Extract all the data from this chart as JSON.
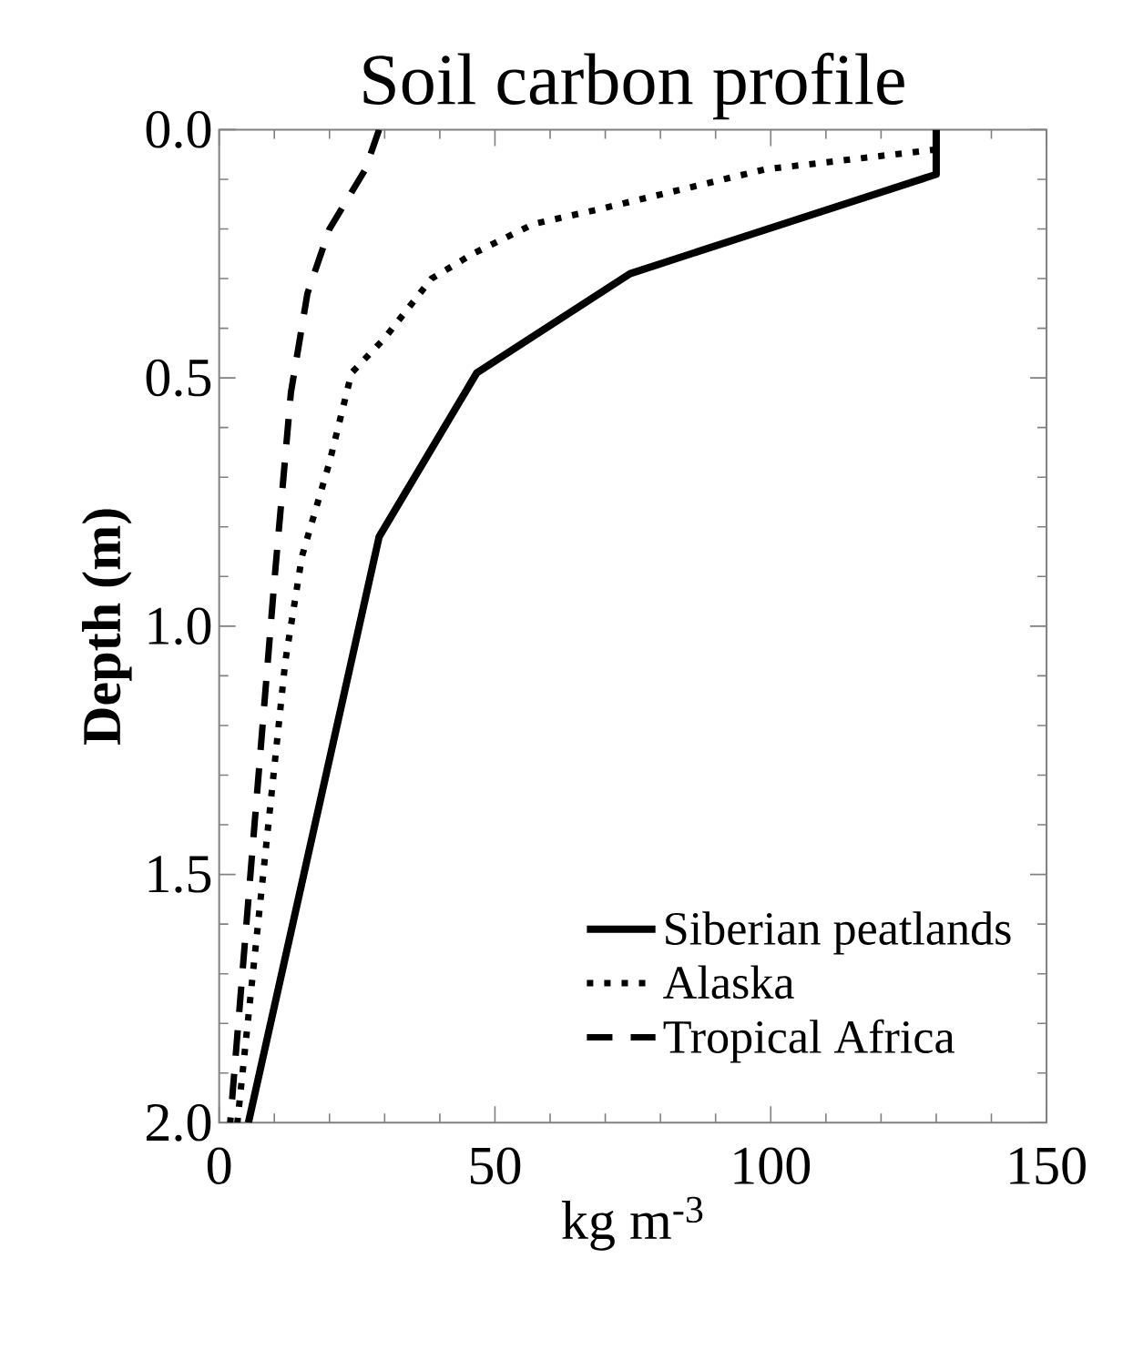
{
  "chart_data": {
    "type": "line",
    "title": "Soil carbon profile",
    "xlabel": "kg m$^{-3}$",
    "ylabel": "Depth (m)",
    "xlim": [
      0,
      150
    ],
    "xticks": [
      0,
      50,
      100,
      150
    ],
    "ylim": [
      2.0,
      0.0
    ],
    "yticks": [
      {
        "value": 0.0,
        "label": "0.0"
      },
      {
        "value": 0.5,
        "label": "0.5"
      },
      {
        "value": 1.0,
        "label": "1.0"
      },
      {
        "value": 1.5,
        "label": "1.5"
      },
      {
        "value": 2.0,
        "label": "2.0"
      }
    ],
    "grid": false,
    "legend": "bottom right",
    "marker": "none",
    "series": [
      {
        "name": "Siberian peatlands",
        "color": "#000000",
        "line_style": "solid",
        "x": [
          130,
          130,
          74.5,
          46.7,
          29,
          5.3
        ],
        "values": [
          0.0,
          0.09,
          0.29,
          0.49,
          0.82,
          2.0
        ]
      },
      {
        "name": "Alaska",
        "color": "#000000",
        "line_style": "dotted",
        "x": [
          130,
          114.6,
          99,
          84,
          69,
          57,
          46,
          38.5,
          30,
          24,
          20,
          15,
          13,
          12,
          3.3
        ],
        "values": [
          0.04,
          0.06,
          0.08,
          0.12,
          0.16,
          0.19,
          0.25,
          0.3,
          0.42,
          0.49,
          0.67,
          0.86,
          1.0,
          1.07,
          2.0
        ]
      },
      {
        "name": "Tropical Africa",
        "color": "#000000",
        "line_style": "dashed",
        "x": [
          29,
          26.5,
          20,
          16,
          13,
          10,
          2
        ],
        "values": [
          0.0,
          0.08,
          0.2,
          0.33,
          0.53,
          0.91,
          2.0
        ]
      }
    ]
  }
}
